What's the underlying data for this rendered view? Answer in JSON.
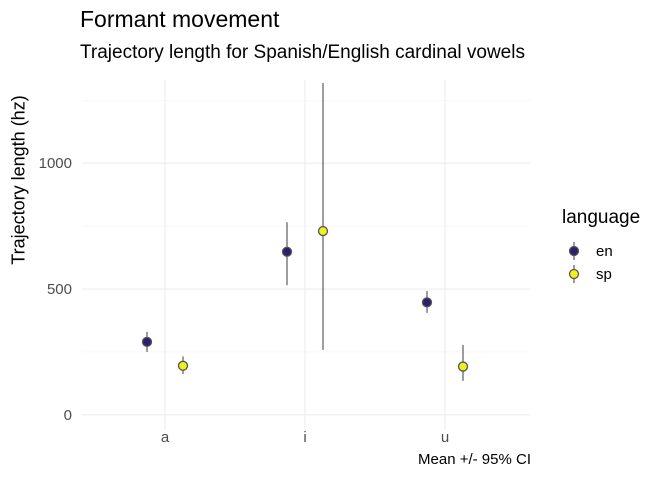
{
  "chart_data": {
    "type": "scatter",
    "title": "Formant movement",
    "subtitle": "Trajectory length for Spanish/English cardinal vowels",
    "xlabel": "",
    "ylabel": "Trajectory length (hz)",
    "caption": "Mean +/- 95% CI",
    "categories": [
      "a",
      "i",
      "u"
    ],
    "ylim": [
      -60,
      1330
    ],
    "yticks": [
      0,
      500,
      1000
    ],
    "grid": true,
    "legend": {
      "title": "language",
      "position": "right"
    },
    "series": [
      {
        "name": "en",
        "color": "#2e1f6e",
        "points": [
          {
            "x": "a",
            "y": 290,
            "lo": 250,
            "hi": 330
          },
          {
            "x": "i",
            "y": 648,
            "lo": 515,
            "hi": 765
          },
          {
            "x": "u",
            "y": 447,
            "lo": 405,
            "hi": 492
          }
        ]
      },
      {
        "name": "sp",
        "color": "#f0f01e",
        "points": [
          {
            "x": "a",
            "y": 195,
            "lo": 162,
            "hi": 232
          },
          {
            "x": "i",
            "y": 730,
            "lo": 258,
            "hi": 1318
          },
          {
            "x": "u",
            "y": 192,
            "lo": 135,
            "hi": 278
          }
        ]
      }
    ]
  }
}
